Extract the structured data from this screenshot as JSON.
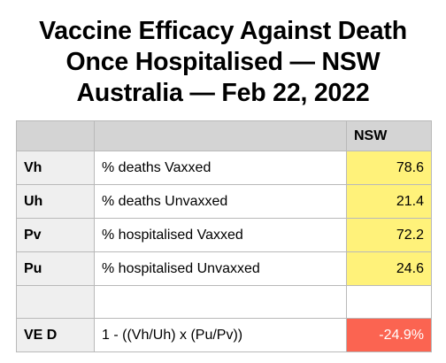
{
  "title": {
    "line1": "Vaccine Efficacy Against Death",
    "line2": "Once Hospitalised — NSW",
    "line3": "Australia — Feb 22, 2022"
  },
  "table": {
    "column_header": "NSW",
    "rows": [
      {
        "code": "Vh",
        "description": "% deaths Vaxxed",
        "value": "78.6"
      },
      {
        "code": "Uh",
        "description": "% deaths Unvaxxed",
        "value": "21.4"
      },
      {
        "code": "Pv",
        "description": "% hospitalised Vaxxed",
        "value": "72.2"
      },
      {
        "code": "Pu",
        "description": "% hospitalised Unvaxxed",
        "value": "24.6"
      }
    ],
    "result": {
      "code": "VE D",
      "formula": "1 - ((Vh/Uh) x (Pu/Pv))",
      "value": "-24.9%"
    }
  },
  "colors": {
    "header_gray": "#d4d4d4",
    "code_gray": "#efefef",
    "value_yellow": "#fff27a",
    "result_red": "#fb6451"
  }
}
